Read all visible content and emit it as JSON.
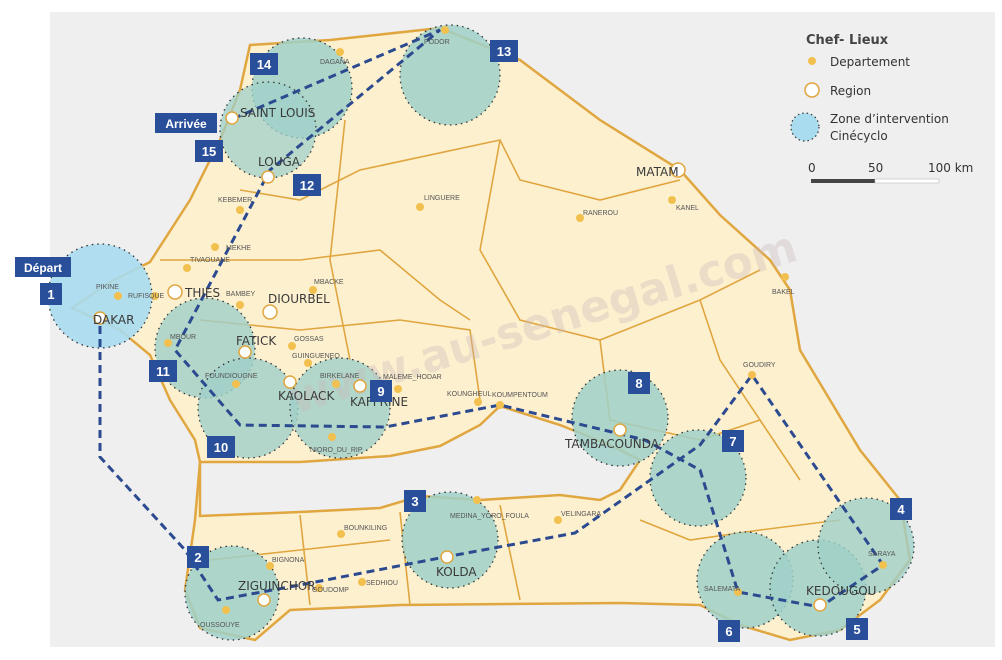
{
  "colors": {
    "background": "#efefef",
    "land": "#fdf0cf",
    "border": "#e0a640",
    "zone": "#9fd0c8",
    "zone_light": "#a9dcef",
    "route": "#2b4a8f",
    "marker": "#2a4f9a",
    "dept_dot": "#f2c04e"
  },
  "legend": {
    "title": "Chef- Lieux",
    "departement": "Departement",
    "region": "Region",
    "zone_line1": "Zone d’intervention",
    "zone_line2": "Cinécyclo",
    "scale": {
      "s0": "0",
      "s50": "50",
      "s100": "100 km"
    }
  },
  "watermark": "www.au-senegal.com",
  "tags": {
    "depart": "Départ",
    "arrivee": "Arrivée"
  },
  "stages": [
    "1",
    "2",
    "3",
    "4",
    "5",
    "6",
    "7",
    "8",
    "9",
    "10",
    "11",
    "12",
    "13",
    "14",
    "15"
  ],
  "regions": {
    "dakar": "DAKAR",
    "thies": "THIES",
    "diourbel": "DIOURBEL",
    "fatick": "FATICK",
    "kaolack": "KAOLACK",
    "kaffrine": "KAFFRINE",
    "louga": "LOUGA",
    "saint_louis": "SAINT LOUIS",
    "matam": "MATAM",
    "tambacounda": "TAMBACOUNDA",
    "kolda": "KOLDA",
    "ziguinchor": "ZIGUINCHOR",
    "kedougou": "KEDOUGOU"
  },
  "departements": {
    "pikine": "PIKINE",
    "rufisque": "RUFISQUE",
    "podor": "PODOR",
    "dagana": "DAGANA",
    "kebemer": "KEBEMER",
    "mekhe": "MEKHE",
    "tivaouane": "TIVAOUANE",
    "mbacke": "MBACKE",
    "bambey": "BAMBEY",
    "linguere": "LINGUERE",
    "ranerou": "RANEROU",
    "kanel": "KANEL",
    "bakel": "BAKEL",
    "gossas": "GOSSAS",
    "guinguineo": "GUINGUENEO",
    "mbour": "MBOUR",
    "foundiougne": "FOUNDIOUGNE",
    "birkelane": "BIRKELANE",
    "maleme": "MALEME_HODAR",
    "koungheul": "KOUNGHEUL",
    "koumpentoum": "KOUMPENTOUM",
    "goudiry": "GOUDIRY",
    "nioro": "NIORO_DU_RIP",
    "medina": "MEDINA_YORO_FOULA",
    "velingara": "VELINGARA",
    "bounkiling": "BOUNKILING",
    "bignona": "BIGNONA",
    "goudomp": "GOUDOMP",
    "sedhiou": "SEDHIOU",
    "oussouye": "OUSSOUYE",
    "salemata": "SALEMATA",
    "saraya": "SARAYA"
  }
}
